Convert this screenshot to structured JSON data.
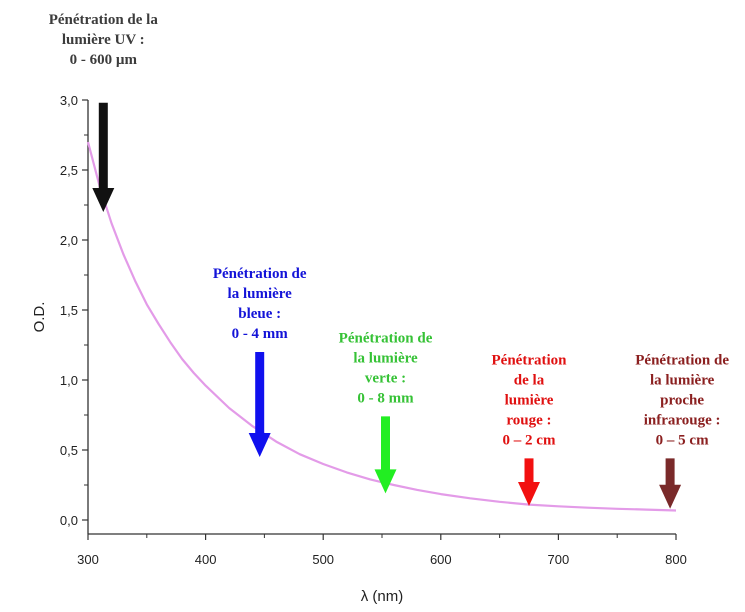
{
  "chart_data": {
    "type": "line",
    "xlabel": "λ (nm)",
    "ylabel": "O.D.",
    "xlim": [
      300,
      800
    ],
    "ylim": [
      -0.1,
      3.0
    ],
    "x_ticks": [
      300,
      400,
      500,
      600,
      700,
      800
    ],
    "x_tick_labels": [
      "300",
      "400",
      "500",
      "600",
      "700",
      "800"
    ],
    "y_ticks": [
      0.0,
      0.5,
      1.0,
      1.5,
      2.0,
      2.5,
      3.0
    ],
    "y_tick_labels": [
      "0,0",
      "0,5",
      "1,0",
      "1,5",
      "2,0",
      "2,5",
      "3,0"
    ],
    "grid": false,
    "series": [
      {
        "color": "#e39be8",
        "x": [
          300,
          310,
          320,
          330,
          340,
          350,
          360,
          370,
          380,
          390,
          400,
          420,
          440,
          460,
          480,
          500,
          520,
          540,
          560,
          580,
          600,
          625,
          650,
          675,
          700,
          725,
          750,
          775,
          800
        ],
        "y": [
          2.7,
          2.38,
          2.12,
          1.9,
          1.71,
          1.54,
          1.4,
          1.27,
          1.15,
          1.05,
          0.96,
          0.8,
          0.67,
          0.56,
          0.47,
          0.4,
          0.34,
          0.29,
          0.25,
          0.215,
          0.185,
          0.155,
          0.13,
          0.11,
          0.098,
          0.088,
          0.08,
          0.074,
          0.068
        ]
      }
    ],
    "annotations": [
      {
        "lines": [
          "Pénétration de la",
          "lumière UV :",
          "0 - 600 µm"
        ],
        "color": "#3c3c3c",
        "arrow_color": "#111111",
        "arrow_x": 313,
        "arrow_y_top": 2.98,
        "arrow_y_tip": 2.2
      },
      {
        "lines": [
          "Pénétration de",
          "la lumière",
          "bleue :",
          "0 - 4 mm"
        ],
        "color": "#1313d8",
        "arrow_color": "#1010ee",
        "arrow_x": 446,
        "arrow_y_top": 1.2,
        "arrow_y_tip": 0.45
      },
      {
        "lines": [
          "Pénétration de",
          "la lumière",
          "verte :",
          "0 - 8 mm"
        ],
        "color": "#36c236",
        "arrow_color": "#22ee22",
        "arrow_x": 553,
        "arrow_y_top": 0.74,
        "arrow_y_tip": 0.19
      },
      {
        "lines": [
          "Pénétration",
          "de la",
          "lumière",
          "rouge :",
          "0 – 2 cm"
        ],
        "color": "#e01010",
        "arrow_color": "#f21010",
        "arrow_x": 675,
        "arrow_y_top": 0.44,
        "arrow_y_tip": 0.1
      },
      {
        "lines": [
          "Pénétration de",
          "la lumière",
          "proche",
          "infrarouge :",
          "0 – 5 cm"
        ],
        "color": "#8b2020",
        "arrow_color": "#7a2a2a",
        "arrow_x": 795,
        "arrow_y_top": 0.44,
        "arrow_y_tip": 0.08
      }
    ]
  }
}
